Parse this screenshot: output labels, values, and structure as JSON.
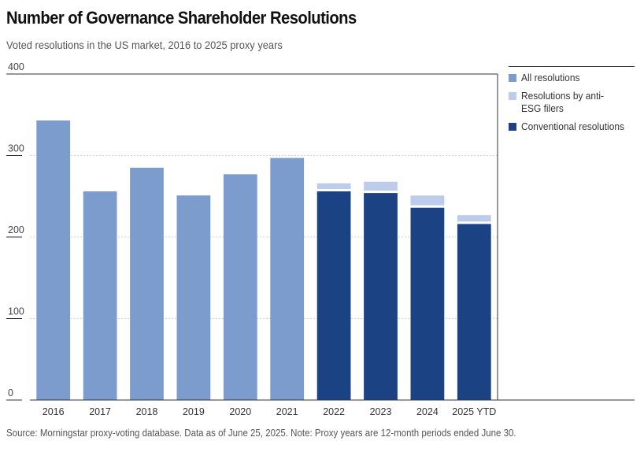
{
  "title": "Number of Governance Shareholder Resolutions",
  "subtitle": "Voted resolutions in the US market, 2016 to 2025 proxy years",
  "source": "Source: Morningstar proxy-voting database. Data as of June 25, 2025. Note: Proxy years are 12-month periods ended June 30.",
  "colors": {
    "all": "#7b9ccc",
    "anti_esg": "#bcccea",
    "conventional": "#1b4282"
  },
  "legend": [
    {
      "label": "All resolutions",
      "color": "#7b9ccc"
    },
    {
      "label": "Resolutions by anti-ESG filers",
      "color": "#bcccea"
    },
    {
      "label": "Conventional resolutions",
      "color": "#1b4282"
    }
  ],
  "chart_data": {
    "type": "bar",
    "stacked": true,
    "categories": [
      "2016",
      "2017",
      "2018",
      "2019",
      "2020",
      "2021",
      "2022",
      "2023",
      "2024",
      "2025 YTD"
    ],
    "series": [
      {
        "name": "All resolutions",
        "values": [
          343,
          256,
          285,
          251,
          277,
          297,
          null,
          null,
          null,
          null
        ]
      },
      {
        "name": "Conventional resolutions",
        "values": [
          null,
          null,
          null,
          null,
          null,
          null,
          256,
          254,
          236,
          216
        ]
      },
      {
        "name": "Resolutions by anti-ESG filers",
        "values": [
          null,
          null,
          null,
          null,
          null,
          null,
          7,
          11,
          12,
          8
        ]
      }
    ],
    "ylim": [
      0,
      400
    ],
    "yticks": [
      0,
      100,
      200,
      300,
      400
    ],
    "grid": true,
    "legend_position": "right"
  }
}
